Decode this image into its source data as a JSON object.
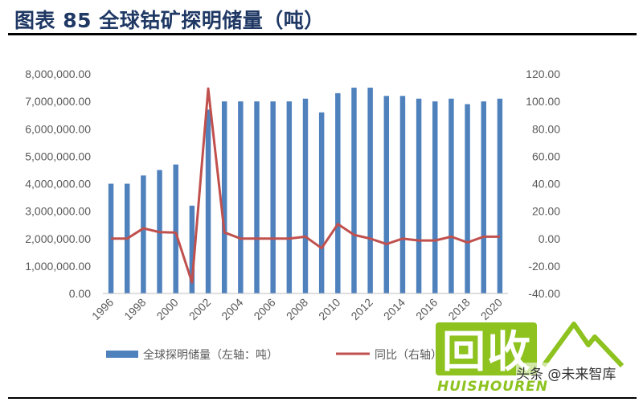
{
  "figure": {
    "title": "图表 85 全球钴矿探明储量（吨）"
  },
  "chart_data": {
    "type": "bar",
    "x": [
      1996,
      1997,
      1998,
      1999,
      2000,
      2001,
      2002,
      2003,
      2004,
      2005,
      2006,
      2007,
      2008,
      2009,
      2010,
      2011,
      2012,
      2013,
      2014,
      2015,
      2016,
      2017,
      2018,
      2019,
      2020
    ],
    "x_tick_labels": [
      "1996",
      "1998",
      "2000",
      "2002",
      "2004",
      "2006",
      "2008",
      "2010",
      "2012",
      "2014",
      "2016",
      "2018",
      "2020"
    ],
    "y_left": {
      "range": [
        0,
        8000000
      ],
      "tick_labels": [
        "0.00",
        "1,000,000.00",
        "2,000,000.00",
        "3,000,000.00",
        "4,000,000.00",
        "5,000,000.00",
        "6,000,000.00",
        "7,000,000.00",
        "8,000,000.00"
      ]
    },
    "y_right": {
      "range": [
        -40,
        120
      ],
      "tick_labels": [
        "-40.00",
        "-20.00",
        "0.00",
        "20.00",
        "40.00",
        "60.00",
        "80.00",
        "100.00",
        "120.00"
      ]
    },
    "series": [
      {
        "name": "全球探明储量（左轴：吨）",
        "kind": "bar",
        "axis": "left",
        "color": "#4f81bd",
        "values": [
          4000000,
          4000000,
          4300000,
          4500000,
          4700000,
          3200000,
          6700000,
          7000000,
          7000000,
          7000000,
          7000000,
          7000000,
          7100000,
          6600000,
          7300000,
          7500000,
          7500000,
          7200000,
          7200000,
          7100000,
          7000000,
          7100000,
          6900000,
          7000000,
          7100000
        ]
      },
      {
        "name": "同比（右轴）",
        "kind": "line",
        "axis": "right",
        "color": "#c0504d",
        "values": [
          0,
          0,
          7.5,
          4.7,
          4.4,
          -31.9,
          109.4,
          4.5,
          0,
          0,
          0,
          0,
          1.4,
          -7.0,
          10.6,
          2.7,
          0,
          -4.0,
          0,
          -1.4,
          -1.4,
          1.4,
          -2.8,
          1.4,
          1.4
        ]
      }
    ],
    "grid": false,
    "legend_position": "bottom"
  },
  "legend": {
    "bar_label": "全球探明储量（左轴：吨）",
    "line_label": "同比（右轴）"
  },
  "watermark": {
    "big_text": "回收",
    "sub_text": "头条 @未来智库",
    "brand_text": "HUISHOUREN"
  }
}
